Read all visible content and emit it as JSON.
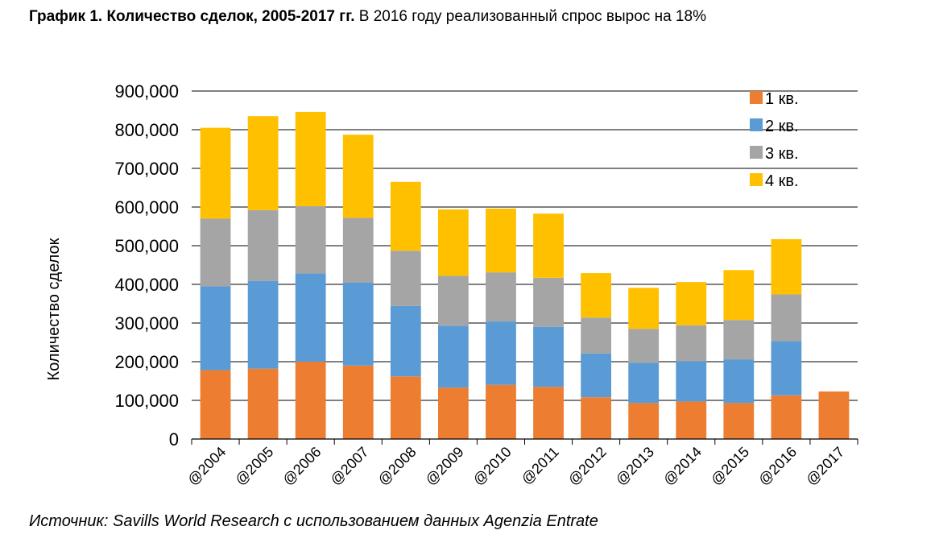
{
  "heading": {
    "bold": "График 1. Количество сделок, 2005-2017 гг.",
    "text": " В 2016 году реализованный спрос вырос на 18%"
  },
  "source": "Источник: Savills World Research с использованием данных Agenzia Entrate",
  "chart_data": {
    "type": "bar",
    "stacked": true,
    "title": "График 1. Количество сделок, 2005-2017 гг.",
    "xlabel": "",
    "ylabel": "Количество сделок",
    "ylim": [
      0,
      900000
    ],
    "yticks": [
      0,
      100000,
      200000,
      300000,
      400000,
      500000,
      600000,
      700000,
      800000,
      900000
    ],
    "ytick_labels": [
      "0",
      "100,000",
      "200,000",
      "300,000",
      "400,000",
      "500,000",
      "600,000",
      "700,000",
      "800,000",
      "900,000"
    ],
    "categories": [
      "@2004",
      "@2005",
      "@2006",
      "@2007",
      "@2008",
      "@2009",
      "@2010",
      "@2011",
      "@2012",
      "@2013",
      "@2014",
      "@2015",
      "@2016",
      "@2017"
    ],
    "series": [
      {
        "name": "1 кв.",
        "color": "#ED7D31",
        "values": [
          178000,
          182000,
          200000,
          190000,
          162000,
          133000,
          140000,
          135000,
          108000,
          93000,
          97000,
          93000,
          113000,
          123000
        ]
      },
      {
        "name": "2 кв.",
        "color": "#5B9BD5",
        "values": [
          217000,
          227000,
          228000,
          215000,
          182000,
          160000,
          164000,
          155000,
          113000,
          104000,
          104000,
          113000,
          140000,
          0
        ]
      },
      {
        "name": "3 кв.",
        "color": "#A5A5A5",
        "values": [
          175000,
          183000,
          174000,
          167000,
          143000,
          129000,
          127000,
          127000,
          93000,
          88000,
          93000,
          102000,
          121000,
          0
        ]
      },
      {
        "name": "4 кв.",
        "color": "#FFC000",
        "values": [
          235000,
          243000,
          244000,
          215000,
          178000,
          172000,
          165000,
          166000,
          115000,
          106000,
          112000,
          129000,
          143000,
          0
        ]
      }
    ],
    "legend_position": "top-right",
    "grid": true
  }
}
